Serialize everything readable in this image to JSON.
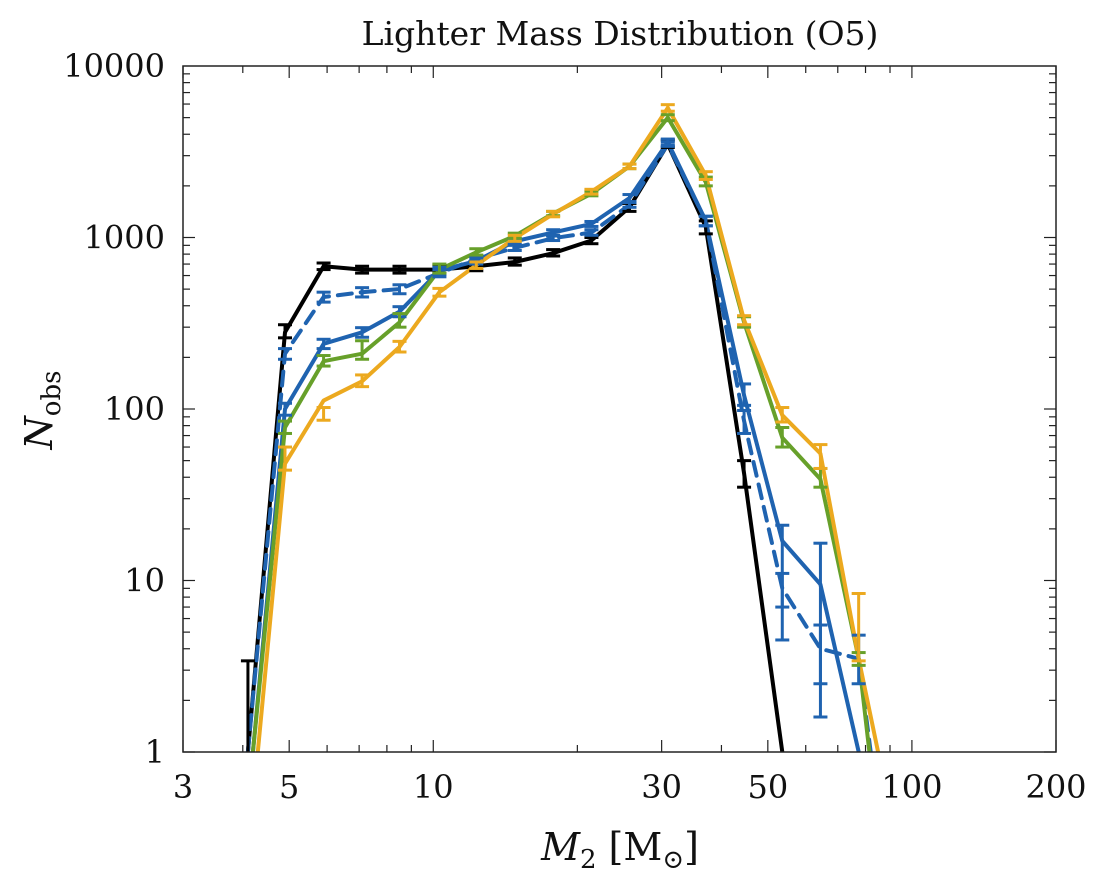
{
  "chart_data": {
    "type": "line",
    "title": "Lighter Mass Distribution (O5)",
    "xlabel": {
      "main": "M",
      "sub": "2",
      "unit": "[M",
      "unit_sub": "⊙",
      "unit_close": "]"
    },
    "ylabel": {
      "main": "N",
      "sub": "obs"
    },
    "x_scale": "log",
    "y_scale": "log",
    "xlim": [
      3,
      200
    ],
    "ylim": [
      1,
      10000
    ],
    "x_ticks": [
      3,
      5,
      10,
      30,
      50,
      100,
      200
    ],
    "x_tick_labels": [
      "3",
      "5",
      "10",
      "30",
      "50",
      "100",
      "200"
    ],
    "y_ticks": [
      1,
      10,
      100,
      1000,
      10000
    ],
    "y_tick_labels": [
      "1",
      "10",
      "100",
      "1000",
      "10000"
    ],
    "grid": false,
    "colors": {
      "black": "#000000",
      "blue": "#1f63b0",
      "green": "#67a02a",
      "orange": "#eca91f"
    },
    "series": [
      {
        "name": "black",
        "color": "#000000",
        "dashed": false,
        "x": [
          4.1,
          4.9,
          5.9,
          7.1,
          8.5,
          10.3,
          12.3,
          14.8,
          17.8,
          21.4,
          25.7,
          30.9,
          37.1,
          44.6,
          53.6
        ],
        "y": [
          1,
          280,
          680,
          650,
          650,
          650,
          680,
          720,
          810,
          960,
          1500,
          3500,
          1150,
          42,
          1
        ],
        "err_low": [
          0,
          260,
          650,
          620,
          620,
          620,
          640,
          690,
          780,
          920,
          1420,
          3350,
          1050,
          35,
          0
        ],
        "err_high": [
          3.4,
          310,
          710,
          680,
          680,
          690,
          720,
          760,
          850,
          1000,
          1580,
          3700,
          1250,
          50,
          0
        ]
      },
      {
        "name": "blue-dashed",
        "color": "#1f63b0",
        "dashed": true,
        "x": [
          4.1,
          4.9,
          5.9,
          7.1,
          8.5,
          10.3,
          12.3,
          14.8,
          17.8,
          21.4,
          25.7,
          30.9,
          37.1,
          44.6,
          53.6,
          64.4,
          77.4,
          82.0
        ],
        "y": [
          1,
          210,
          450,
          480,
          500,
          620,
          750,
          870,
          990,
          1070,
          1550,
          3500,
          1250,
          85,
          9,
          4,
          3.5,
          1
        ],
        "err_low": [
          0,
          195,
          420,
          450,
          470,
          590,
          720,
          840,
          960,
          1030,
          1500,
          3400,
          1170,
          72,
          7,
          2.5,
          2.5,
          0
        ],
        "err_high": [
          0,
          225,
          480,
          510,
          530,
          650,
          780,
          900,
          1020,
          1110,
          1600,
          3600,
          1330,
          98,
          11,
          5.5,
          4.8,
          0
        ]
      },
      {
        "name": "blue",
        "color": "#1f63b0",
        "dashed": false,
        "x": [
          4.2,
          4.9,
          5.9,
          7.1,
          8.5,
          10.3,
          12.3,
          14.8,
          17.8,
          21.4,
          25.7,
          30.9,
          37.1,
          44.6,
          53.6,
          64.4,
          77.4
        ],
        "y": [
          1,
          100,
          240,
          280,
          370,
          640,
          730,
          950,
          1070,
          1200,
          1700,
          3600,
          1250,
          120,
          17,
          9.5,
          1
        ],
        "err_low": [
          0,
          92,
          225,
          262,
          345,
          610,
          700,
          915,
          1030,
          1160,
          1620,
          3450,
          1170,
          105,
          4.5,
          1.6,
          0
        ],
        "err_high": [
          0,
          108,
          255,
          298,
          395,
          670,
          760,
          985,
          1110,
          1240,
          1780,
          3750,
          1330,
          140,
          21,
          16.5,
          0
        ]
      },
      {
        "name": "green",
        "color": "#67a02a",
        "dashed": false,
        "x": [
          4.2,
          4.9,
          5.9,
          7.1,
          8.5,
          10.3,
          12.3,
          14.8,
          17.8,
          21.4,
          25.7,
          30.9,
          37.1,
          44.6,
          53.6,
          64.4,
          77.4,
          81.5
        ],
        "y": [
          1,
          78,
          190,
          210,
          320,
          650,
          820,
          1020,
          1380,
          1800,
          2600,
          5000,
          2100,
          320,
          68,
          39,
          3.5,
          1
        ],
        "err_low": [
          0,
          72,
          178,
          195,
          300,
          620,
          790,
          990,
          1340,
          1750,
          2520,
          4800,
          2000,
          300,
          60,
          35,
          3.2,
          0
        ],
        "err_high": [
          0,
          85,
          205,
          250,
          360,
          700,
          860,
          1060,
          1420,
          1860,
          2680,
          5200,
          2250,
          345,
          78,
          45,
          3.8,
          0
        ]
      },
      {
        "name": "orange",
        "color": "#eca91f",
        "dashed": false,
        "x": [
          4.3,
          4.9,
          5.9,
          7.1,
          8.5,
          10.3,
          12.3,
          14.8,
          17.8,
          21.4,
          25.7,
          30.9,
          37.1,
          44.6,
          53.6,
          64.4,
          77.4,
          85.0
        ],
        "y": [
          1,
          48,
          112,
          145,
          230,
          480,
          690,
          990,
          1370,
          1850,
          2600,
          5700,
          2300,
          330,
          92,
          55,
          3.5,
          1
        ],
        "err_low": [
          0,
          44,
          86,
          135,
          215,
          455,
          660,
          950,
          1320,
          1790,
          2520,
          5450,
          2180,
          310,
          84,
          45,
          3.4,
          0
        ],
        "err_high": [
          0,
          60,
          102,
          158,
          248,
          505,
          720,
          1030,
          1420,
          1910,
          2680,
          5950,
          2420,
          350,
          102,
          62,
          8.4,
          0
        ]
      }
    ]
  }
}
